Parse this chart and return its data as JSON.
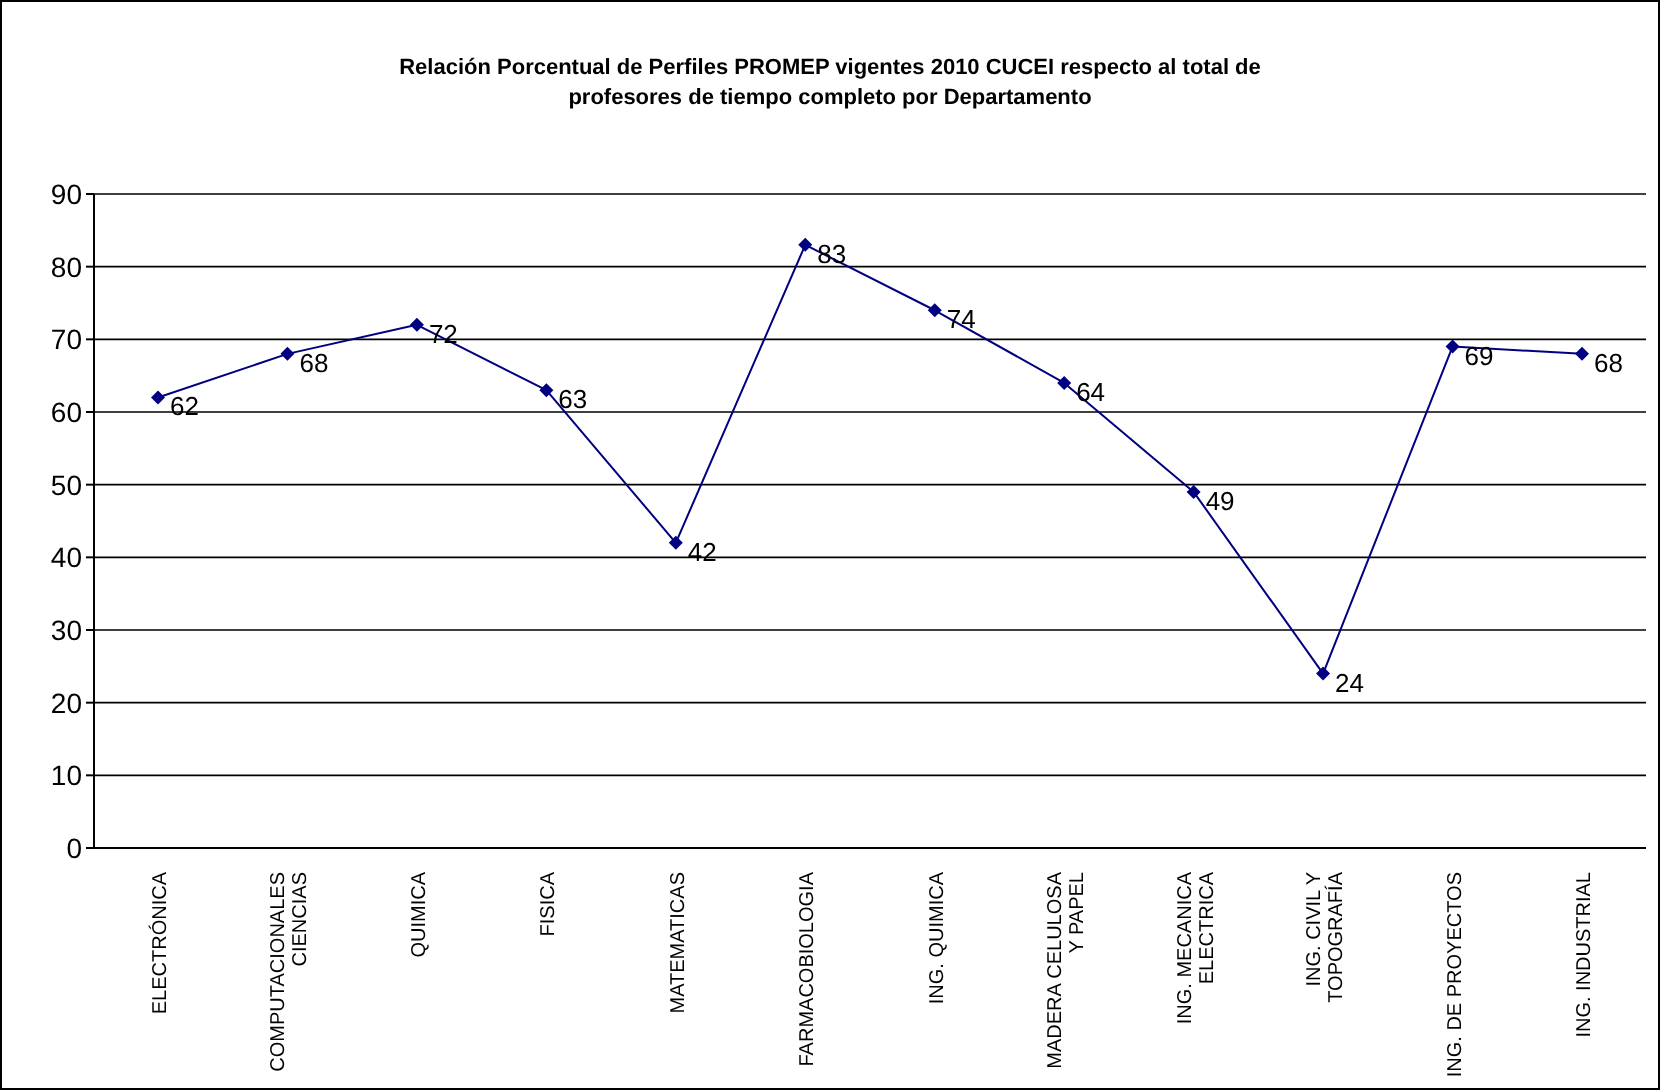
{
  "chart_data": {
    "type": "line",
    "title": "Relación Porcentual de Perfiles PROMEP vigentes 2010 CUCEI respecto al total de\nprofesores de tiempo completo por Departamento",
    "categories": [
      "ELECTRÓNICA",
      "COMPUTACIONALES\nCIENCIAS",
      "QUIMICA",
      "FISICA",
      "MATEMATICAS",
      "FARMACOBIOLOGIA",
      "ING. QUIMICA",
      "MADERA CELULOSA\nY PAPEL",
      "ING. MECANICA\nELECTRICA",
      "ING. CIVIL Y\nTOPOGRAFÍA",
      "ING. DE PROYECTOS",
      "ING. INDUSTRIAL"
    ],
    "series": [
      {
        "color": "#000080",
        "values": [
          62,
          68,
          72,
          63,
          42,
          83,
          74,
          64,
          49,
          24,
          69,
          68
        ]
      }
    ],
    "ylim": [
      0,
      90
    ],
    "yticks": [
      0,
      10,
      20,
      30,
      40,
      50,
      60,
      70,
      80,
      90
    ],
    "grid": "y",
    "marker": "diamond",
    "data_labels": true,
    "legend": false
  }
}
